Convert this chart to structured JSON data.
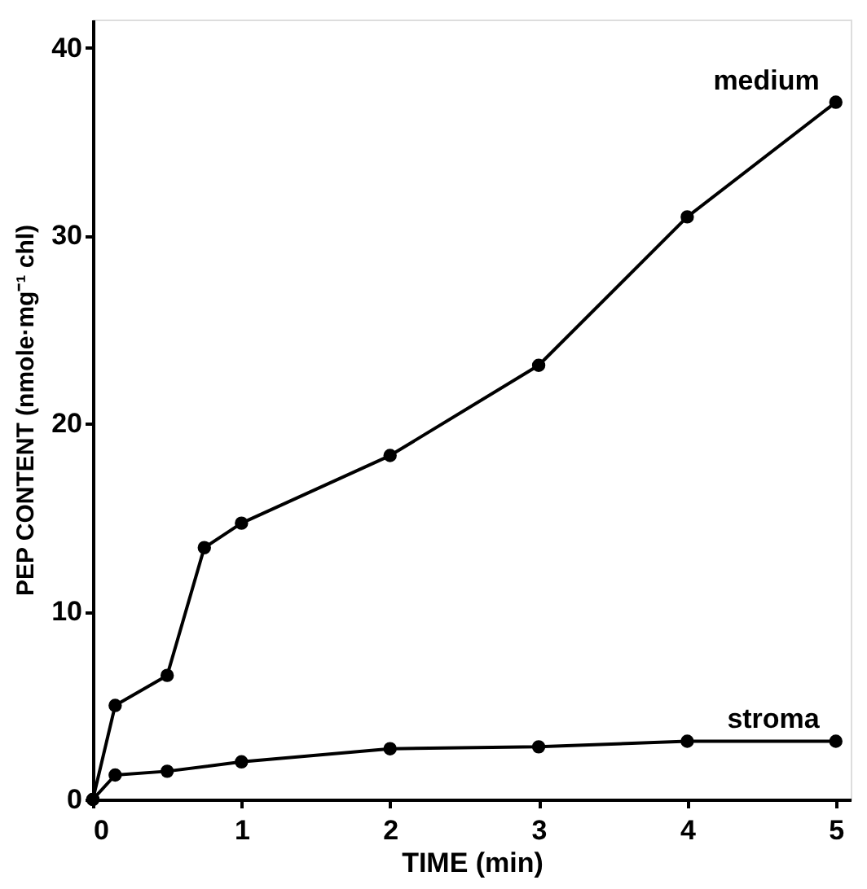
{
  "chart_data": {
    "type": "line",
    "xlabel": "TIME (min)",
    "ylabel": "PEP CONTENT (nmole·mg⁻¹ chl)",
    "xlim": [
      0,
      5.1
    ],
    "xticks": [
      0,
      1,
      2,
      3,
      4,
      5
    ],
    "ylim": [
      0,
      41.5
    ],
    "yticks": [
      0,
      10,
      20,
      30,
      40
    ],
    "grid": false,
    "marker": "circle",
    "line_style": "solid",
    "series": [
      {
        "name": "medium",
        "color": "#000000",
        "x": [
          0,
          0.15,
          0.5,
          0.75,
          1,
          2,
          3,
          4,
          5
        ],
        "values": [
          0,
          5.0,
          6.6,
          13.4,
          14.7,
          18.3,
          23.1,
          31.0,
          37.1
        ]
      },
      {
        "name": "stroma",
        "color": "#000000",
        "x": [
          0,
          0.15,
          0.5,
          1,
          2,
          3,
          4,
          5
        ],
        "values": [
          0,
          1.3,
          1.5,
          2.0,
          2.7,
          2.8,
          3.1,
          3.1
        ]
      }
    ]
  }
}
